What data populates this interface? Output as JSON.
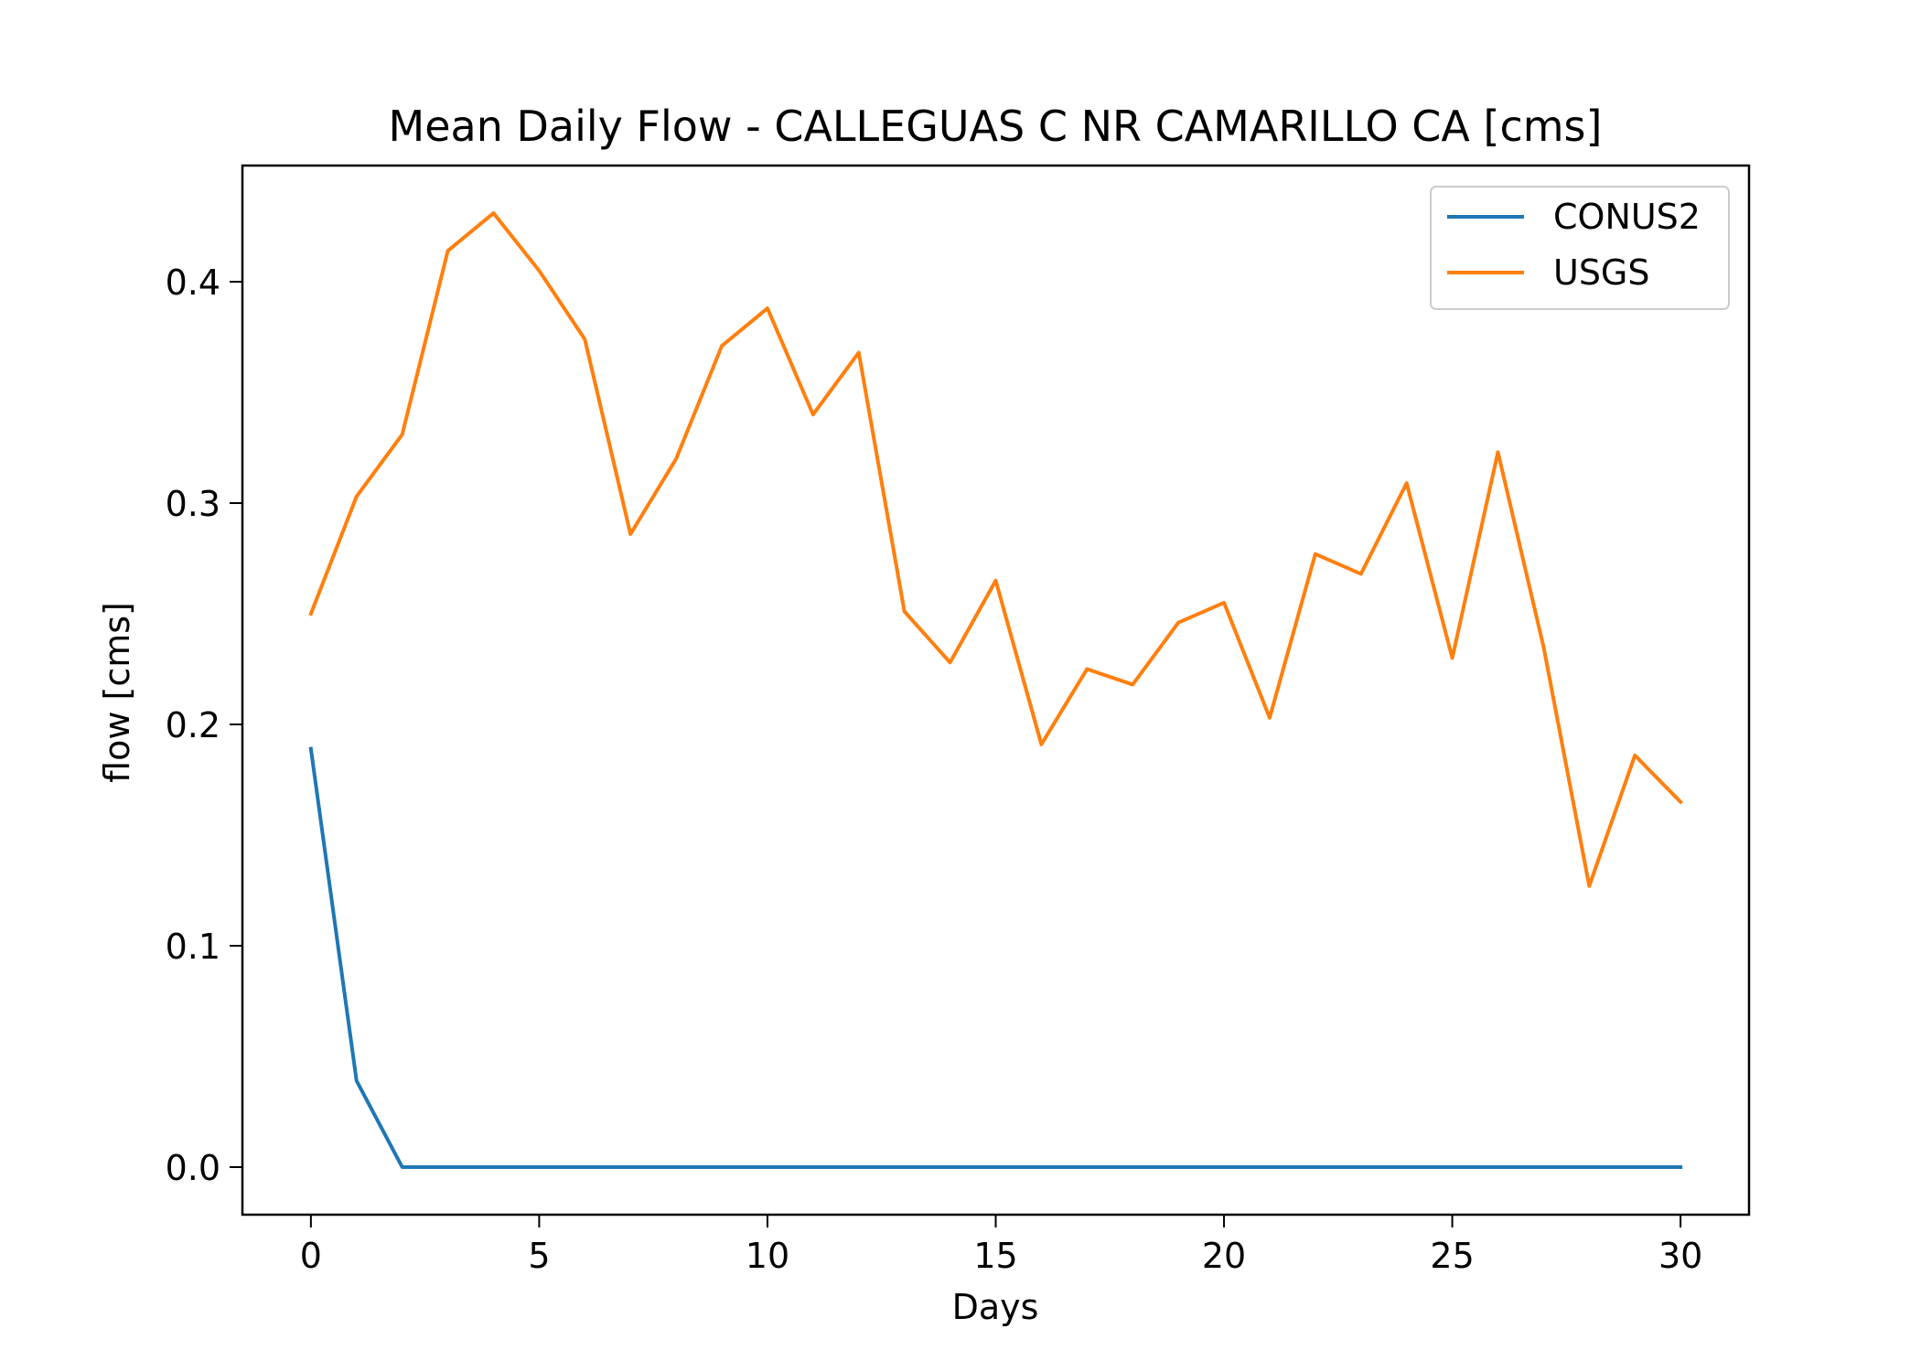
{
  "chart_data": {
    "type": "line",
    "title": "Mean Daily Flow - CALLEGUAS C NR CAMARILLO CA [cms]",
    "xlabel": "Days",
    "ylabel": "flow [cms]",
    "xlim": [
      -1.5,
      31.5
    ],
    "ylim": [
      -0.0215,
      0.4525
    ],
    "xticks": [
      0,
      5,
      10,
      15,
      20,
      25,
      30
    ],
    "xtick_labels": [
      "0",
      "5",
      "10",
      "15",
      "20",
      "25",
      "30"
    ],
    "yticks": [
      0.0,
      0.1,
      0.2,
      0.3,
      0.4
    ],
    "ytick_labels": [
      "0.0",
      "0.1",
      "0.2",
      "0.3",
      "0.4"
    ],
    "grid": false,
    "legend_position": "top-right",
    "x": [
      0,
      1,
      2,
      3,
      4,
      5,
      6,
      7,
      8,
      9,
      10,
      11,
      12,
      13,
      14,
      15,
      16,
      17,
      18,
      19,
      20,
      21,
      22,
      23,
      24,
      25,
      26,
      27,
      28,
      29,
      30
    ],
    "series": [
      {
        "name": "CONUS2",
        "color": "#1f77b4",
        "values": [
          0.189,
          0.039,
          0.0,
          0.0,
          0.0,
          0.0,
          0.0,
          0.0,
          0.0,
          0.0,
          0.0,
          0.0,
          0.0,
          0.0,
          0.0,
          0.0,
          0.0,
          0.0,
          0.0,
          0.0,
          0.0,
          0.0,
          0.0,
          0.0,
          0.0,
          0.0,
          0.0,
          0.0,
          0.0,
          0.0,
          0.0
        ]
      },
      {
        "name": "USGS",
        "color": "#ff7f0e",
        "values": [
          0.25,
          0.303,
          0.331,
          0.414,
          0.431,
          0.405,
          0.374,
          0.286,
          0.32,
          0.371,
          0.388,
          0.34,
          0.368,
          0.251,
          0.228,
          0.265,
          0.191,
          0.225,
          0.218,
          0.246,
          0.255,
          0.203,
          0.277,
          0.268,
          0.309,
          0.23,
          0.323,
          0.235,
          0.127,
          0.186,
          0.165
        ]
      }
    ]
  }
}
